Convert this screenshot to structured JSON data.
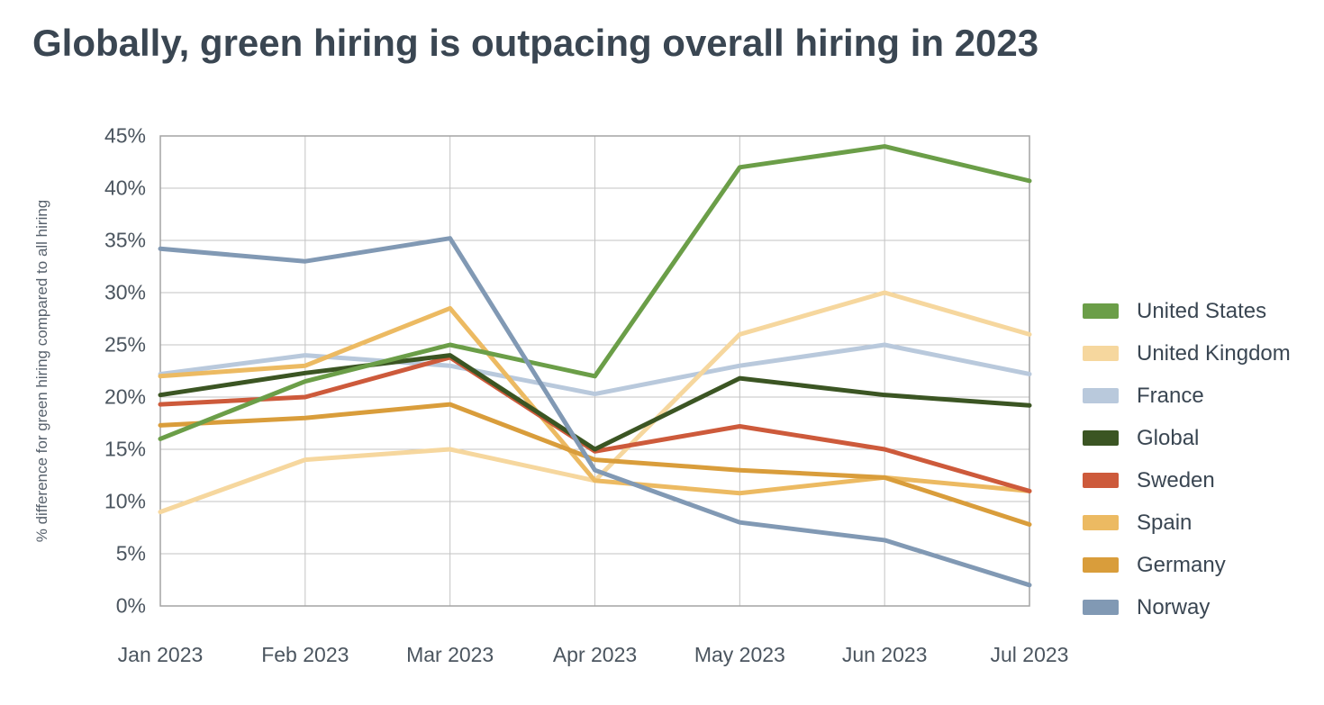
{
  "page_title": "Globally, green hiring is outpacing overall hiring in 2023",
  "colors": {
    "title_text": "#3a4652",
    "axis_text": "#4b555f",
    "grid": "#c3c3c3",
    "plot_border": "#a3a3a3",
    "background": "#ffffff"
  },
  "chart_data": {
    "type": "line",
    "title": "Globally, green hiring is outpacing overall hiring in 2023",
    "xlabel": "",
    "ylabel": "% difference for green hiring compared to all hiring",
    "categories": [
      "Jan 2023",
      "Feb 2023",
      "Mar 2023",
      "Apr 2023",
      "May 2023",
      "Jun 2023",
      "Jul 2023"
    ],
    "ylim": [
      0,
      45
    ],
    "ytick_step": 5,
    "ytick_labels": [
      "0%",
      "5%",
      "10%",
      "15%",
      "20%",
      "25%",
      "30%",
      "35%",
      "40%",
      "45%"
    ],
    "grid": true,
    "legend_position": "right",
    "series": [
      {
        "name": "United States",
        "color": "#6b9e48",
        "values": [
          16,
          21.5,
          25,
          22,
          42,
          44,
          40.7
        ]
      },
      {
        "name": "United Kingdom",
        "color": "#f6d79e",
        "values": [
          9,
          14,
          15,
          12,
          26,
          30,
          26
        ]
      },
      {
        "name": "France",
        "color": "#b9c9dc",
        "values": [
          22.2,
          24,
          23,
          20.3,
          23,
          25,
          22.2
        ]
      },
      {
        "name": "Global",
        "color": "#3b5523",
        "values": [
          20.2,
          22.3,
          24,
          15,
          21.8,
          20.2,
          19.2
        ]
      },
      {
        "name": "Sweden",
        "color": "#cd5a3b",
        "values": [
          19.3,
          20,
          23.8,
          14.8,
          17.2,
          15,
          11
        ]
      },
      {
        "name": "Spain",
        "color": "#ecba62",
        "values": [
          22,
          23,
          28.5,
          12,
          10.8,
          12.3,
          11
        ]
      },
      {
        "name": "Germany",
        "color": "#d99d3b",
        "values": [
          17.3,
          18,
          19.3,
          14,
          13,
          12.3,
          7.8
        ]
      },
      {
        "name": "Norway",
        "color": "#8199b4",
        "values": [
          34.2,
          33,
          35.2,
          13,
          8,
          6.3,
          2
        ]
      }
    ]
  }
}
